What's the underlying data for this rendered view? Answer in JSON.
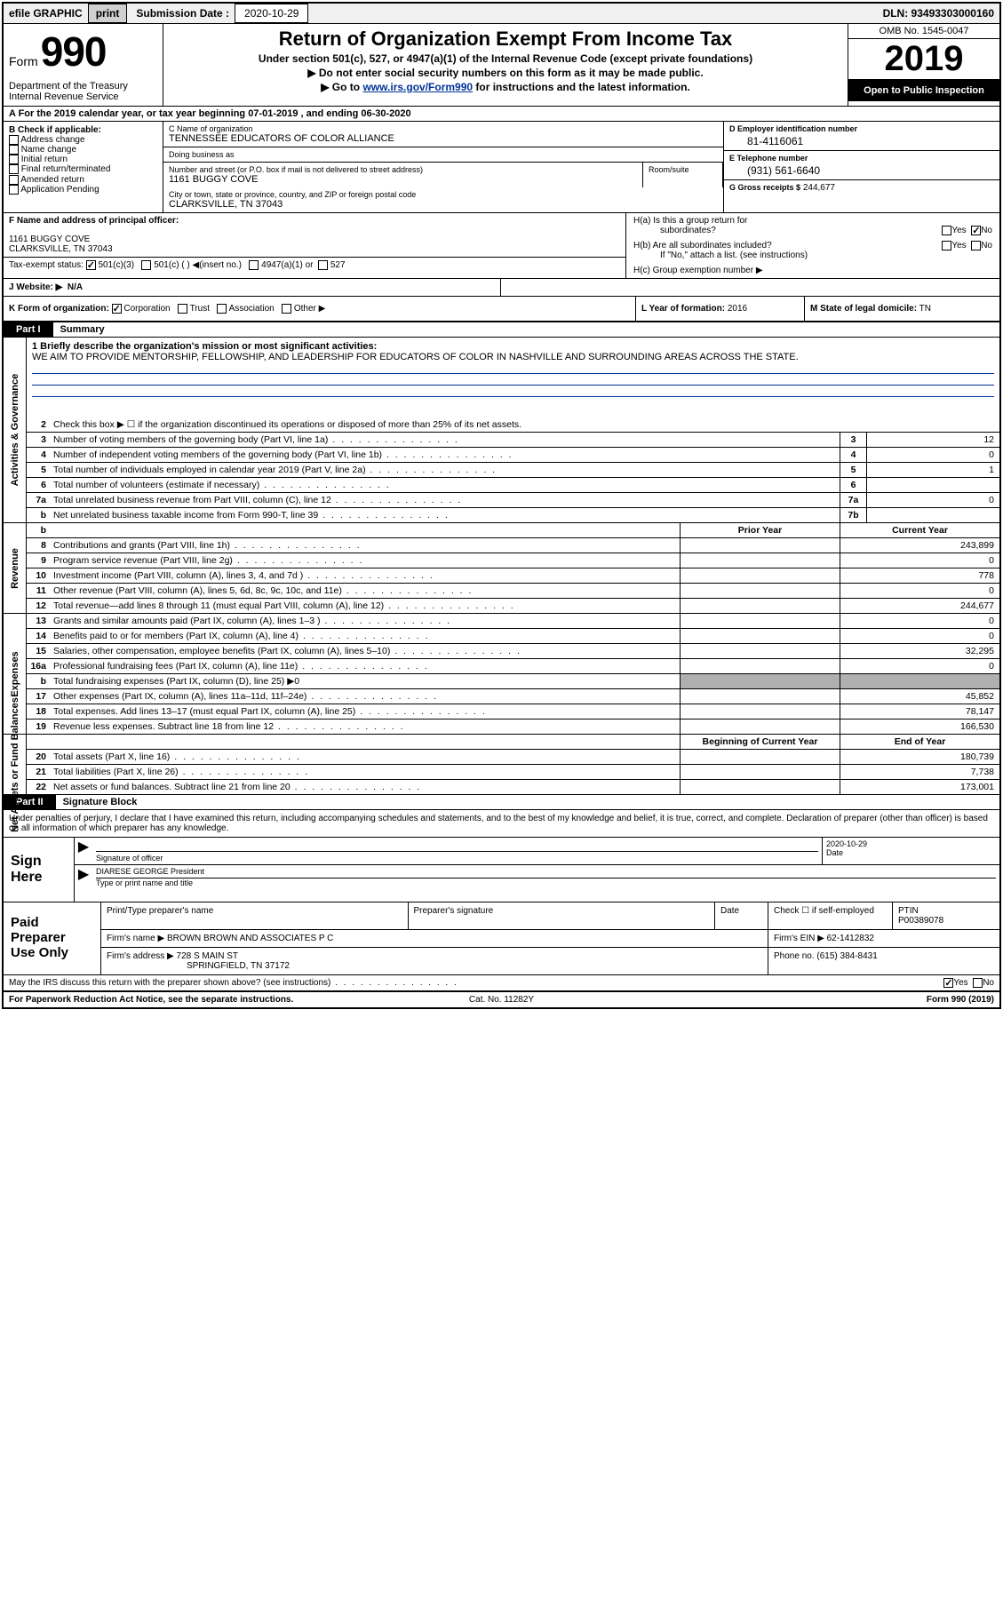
{
  "topbar": {
    "efile": "efile GRAPHIC",
    "print": "print",
    "sub_label": "Submission Date :",
    "sub_date": "2020-10-29",
    "dln": "DLN: 93493303000160"
  },
  "header": {
    "form_word": "Form",
    "form_num": "990",
    "dept": "Department of the Treasury\nInternal Revenue Service",
    "title": "Return of Organization Exempt From Income Tax",
    "subtitle1": "Under section 501(c), 527, or 4947(a)(1) of the Internal Revenue Code (except private foundations)",
    "subtitle2": "▶ Do not enter social security numbers on this form as it may be made public.",
    "subtitle3_pre": "▶ Go to ",
    "subtitle3_link": "www.irs.gov/Form990",
    "subtitle3_post": " for instructions and the latest information.",
    "omb": "OMB No. 1545-0047",
    "year": "2019",
    "open_pub": "Open to Public Inspection"
  },
  "a_line": "A For the 2019 calendar year, or tax year beginning 07-01-2019    , and ending 06-30-2020",
  "b": {
    "hd": "B Check if applicable:",
    "items": [
      "Address change",
      "Name change",
      "Initial return",
      "Final return/terminated",
      "Amended return",
      "Application Pending"
    ]
  },
  "c": {
    "name_lbl": "C Name of organization",
    "name": "TENNESSEE EDUCATORS OF COLOR ALLIANCE",
    "dba_lbl": "Doing business as",
    "dba": "",
    "addr_lbl": "Number and street (or P.O. box if mail is not delivered to street address)",
    "addr": "1161 BUGGY COVE",
    "room_lbl": "Room/suite",
    "room": "",
    "city_lbl": "City or town, state or province, country, and ZIP or foreign postal code",
    "city": "CLARKSVILLE, TN  37043"
  },
  "d": {
    "ein_lbl": "D Employer identification number",
    "ein": "81-4116061",
    "tel_lbl": "E Telephone number",
    "tel": "(931) 561-6640",
    "gross_lbl": "G Gross receipts $",
    "gross": "244,677"
  },
  "f": {
    "lbl": "F  Name and address of principal officer:",
    "name": "",
    "addr": "1161 BUGGY COVE\nCLARKSVILLE, TN  37043",
    "tax_lbl": "Tax-exempt status:",
    "tax_opts": [
      "501(c)(3)",
      "501(c) (  ) ◀(insert no.)",
      "4947(a)(1) or",
      "527"
    ]
  },
  "h": {
    "a_lbl": "H(a)  Is this a group return for",
    "a_lbl2": "subordinates?",
    "b_lbl": "H(b)  Are all subordinates included?",
    "b_note": "If \"No,\" attach a list. (see instructions)",
    "c_lbl": "H(c)  Group exemption number ▶"
  },
  "j": {
    "lbl": "J   Website: ▶",
    "val": "N/A"
  },
  "k": {
    "lbl": "K Form of organization:",
    "opts": [
      "Corporation",
      "Trust",
      "Association",
      "Other ▶"
    ],
    "l_lbl": "L Year of formation:",
    "l_val": "2016",
    "m_lbl": "M State of legal domicile:",
    "m_val": "TN"
  },
  "part1": {
    "num": "Part I",
    "title": "Summary",
    "mission_lbl": "1   Briefly describe the organization's mission or most significant activities:",
    "mission": "WE AIM TO PROVIDE MENTORSHIP, FELLOWSHIP, AND LEADERSHIP FOR EDUCATORS OF COLOR IN NASHVILLE AND SURROUNDING AREAS ACROSS THE STATE.",
    "line2": "Check this box ▶ ☐  if the organization discontinued its operations or disposed of more than 25% of its net assets.",
    "rows_gov": [
      {
        "n": "3",
        "t": "Number of voting members of the governing body (Part VI, line 1a)",
        "box": "3",
        "v": "12"
      },
      {
        "n": "4",
        "t": "Number of independent voting members of the governing body (Part VI, line 1b)",
        "box": "4",
        "v": "0"
      },
      {
        "n": "5",
        "t": "Total number of individuals employed in calendar year 2019 (Part V, line 2a)",
        "box": "5",
        "v": "1"
      },
      {
        "n": "6",
        "t": "Total number of volunteers (estimate if necessary)",
        "box": "6",
        "v": ""
      },
      {
        "n": "7a",
        "t": "Total unrelated business revenue from Part VIII, column (C), line 12",
        "box": "7a",
        "v": "0"
      },
      {
        "n": "b",
        "t": "Net unrelated business taxable income from Form 990-T, line 39",
        "box": "7b",
        "v": ""
      }
    ],
    "col_hdr1": "Prior Year",
    "col_hdr2": "Current Year",
    "rows_rev": [
      {
        "n": "8",
        "t": "Contributions and grants (Part VIII, line 1h)",
        "c1": "",
        "c2": "243,899"
      },
      {
        "n": "9",
        "t": "Program service revenue (Part VIII, line 2g)",
        "c1": "",
        "c2": "0"
      },
      {
        "n": "10",
        "t": "Investment income (Part VIII, column (A), lines 3, 4, and 7d )",
        "c1": "",
        "c2": "778"
      },
      {
        "n": "11",
        "t": "Other revenue (Part VIII, column (A), lines 5, 6d, 8c, 9c, 10c, and 11e)",
        "c1": "",
        "c2": "0"
      },
      {
        "n": "12",
        "t": "Total revenue—add lines 8 through 11 (must equal Part VIII, column (A), line 12)",
        "c1": "",
        "c2": "244,677"
      }
    ],
    "rows_exp": [
      {
        "n": "13",
        "t": "Grants and similar amounts paid (Part IX, column (A), lines 1–3 )",
        "c1": "",
        "c2": "0"
      },
      {
        "n": "14",
        "t": "Benefits paid to or for members (Part IX, column (A), line 4)",
        "c1": "",
        "c2": "0"
      },
      {
        "n": "15",
        "t": "Salaries, other compensation, employee benefits (Part IX, column (A), lines 5–10)",
        "c1": "",
        "c2": "32,295"
      },
      {
        "n": "16a",
        "t": "Professional fundraising fees (Part IX, column (A), line 11e)",
        "c1": "",
        "c2": "0"
      },
      {
        "n": "b",
        "t": "Total fundraising expenses (Part IX, column (D), line 25) ▶0",
        "grey": true
      },
      {
        "n": "17",
        "t": "Other expenses (Part IX, column (A), lines 11a–11d, 11f–24e)",
        "c1": "",
        "c2": "45,852"
      },
      {
        "n": "18",
        "t": "Total expenses. Add lines 13–17 (must equal Part IX, column (A), line 25)",
        "c1": "",
        "c2": "78,147"
      },
      {
        "n": "19",
        "t": "Revenue less expenses. Subtract line 18 from line 12",
        "c1": "",
        "c2": "166,530"
      }
    ],
    "col_hdr3": "Beginning of Current Year",
    "col_hdr4": "End of Year",
    "rows_net": [
      {
        "n": "20",
        "t": "Total assets (Part X, line 16)",
        "c1": "",
        "c2": "180,739"
      },
      {
        "n": "21",
        "t": "Total liabilities (Part X, line 26)",
        "c1": "",
        "c2": "7,738"
      },
      {
        "n": "22",
        "t": "Net assets or fund balances. Subtract line 21 from line 20",
        "c1": "",
        "c2": "173,001"
      }
    ],
    "side_gov": "Activities & Governance",
    "side_rev": "Revenue",
    "side_exp": "Expenses",
    "side_net": "Net Assets or Fund Balances"
  },
  "part2": {
    "num": "Part II",
    "title": "Signature Block",
    "decl": "Under penalties of perjury, I declare that I have examined this return, including accompanying schedules and statements, and to the best of my knowledge and belief, it is true, correct, and complete. Declaration of preparer (other than officer) is based on all information of which preparer has any knowledge.",
    "sign_here": "Sign Here",
    "sig_lbl": "Signature of officer",
    "date_lbl": "Date",
    "date_val": "2020-10-29",
    "name_lbl": "Type or print name and title",
    "name_val": "DIARESE GEORGE President",
    "paid": "Paid Preparer Use Only",
    "p_name_lbl": "Print/Type preparer's name",
    "p_sig_lbl": "Preparer's signature",
    "p_date_lbl": "Date",
    "p_chk": "Check ☐ if self-employed",
    "ptin_lbl": "PTIN",
    "ptin": "P00389078",
    "firm_name_lbl": "Firm's name    ▶",
    "firm_name": "BROWN BROWN AND ASSOCIATES P C",
    "firm_ein_lbl": "Firm's EIN ▶",
    "firm_ein": "62-1412832",
    "firm_addr_lbl": "Firm's address ▶",
    "firm_addr": "728 S MAIN ST",
    "firm_city": "SPRINGFIELD, TN  37172",
    "phone_lbl": "Phone no.",
    "phone": "(615) 384-8431",
    "discuss": "May the IRS discuss this return with the preparer shown above? (see instructions)"
  },
  "footer": {
    "pra": "For Paperwork Reduction Act Notice, see the separate instructions.",
    "cat": "Cat. No. 11282Y",
    "form": "Form 990 (2019)"
  },
  "colors": {
    "link": "#003399",
    "black": "#000000",
    "grey": "#b0b0b0"
  }
}
